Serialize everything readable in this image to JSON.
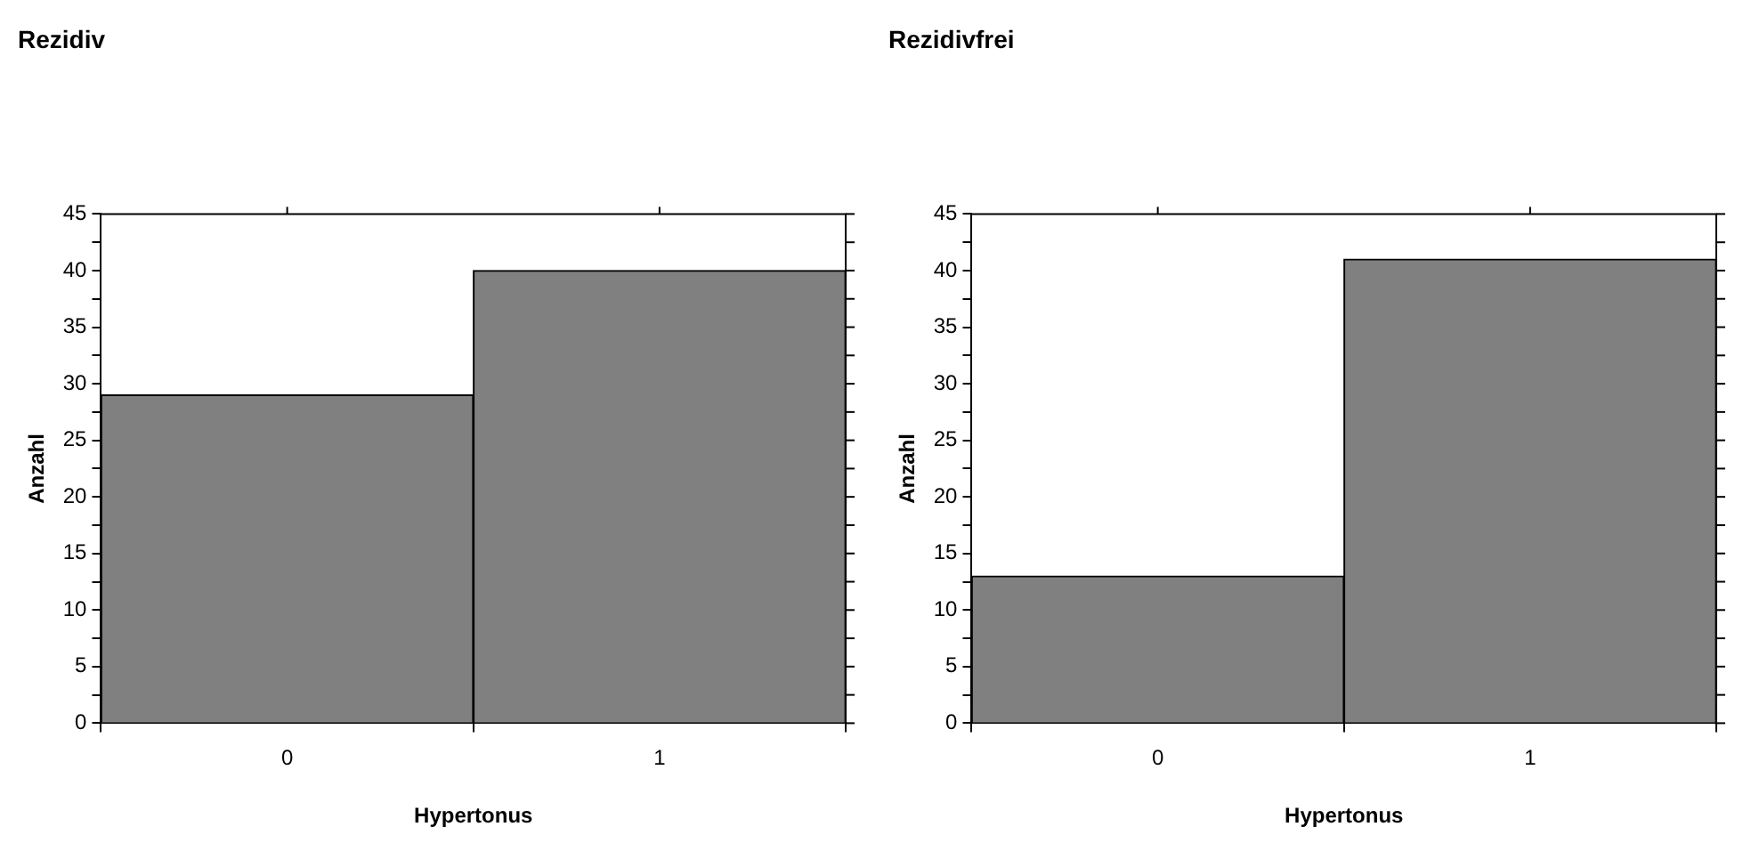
{
  "chart_data": [
    {
      "type": "bar",
      "title": "Rezidiv",
      "categories": [
        "0",
        "1"
      ],
      "values": [
        29,
        40
      ],
      "color": "#808080",
      "xlabel": "Hypertonus",
      "ylabel": "Anzahl",
      "ylim": [
        0,
        45
      ],
      "yticks": [
        0,
        {
          "value": 2.5,
          "label": null
        },
        5,
        {
          "value": 7.5,
          "label": null
        },
        10,
        {
          "value": 12.5,
          "label": null
        },
        15,
        {
          "value": 17.5,
          "label": null
        },
        20,
        {
          "value": 22.5,
          "label": null
        },
        25,
        {
          "value": 27.5,
          "label": null
        },
        30,
        {
          "value": 32.5,
          "label": null
        },
        35,
        {
          "value": 37.5,
          "label": null
        },
        40,
        {
          "value": 42.5,
          "label": null
        },
        45
      ],
      "grid": false,
      "legend": false
    },
    {
      "type": "bar",
      "title": "Rezidivfrei",
      "categories": [
        "0",
        "1"
      ],
      "values": [
        13,
        41
      ],
      "color": "#808080",
      "xlabel": "Hypertonus",
      "ylabel": "Anzahl",
      "ylim": [
        0,
        45
      ],
      "yticks": [
        0,
        {
          "value": 2.5,
          "label": null
        },
        5,
        {
          "value": 7.5,
          "label": null
        },
        10,
        {
          "value": 12.5,
          "label": null
        },
        15,
        {
          "value": 17.5,
          "label": null
        },
        20,
        {
          "value": 22.5,
          "label": null
        },
        25,
        {
          "value": 27.5,
          "label": null
        },
        30,
        {
          "value": 32.5,
          "label": null
        },
        35,
        {
          "value": 37.5,
          "label": null
        },
        40,
        {
          "value": 42.5,
          "label": null
        },
        45
      ],
      "grid": false,
      "legend": false
    }
  ]
}
